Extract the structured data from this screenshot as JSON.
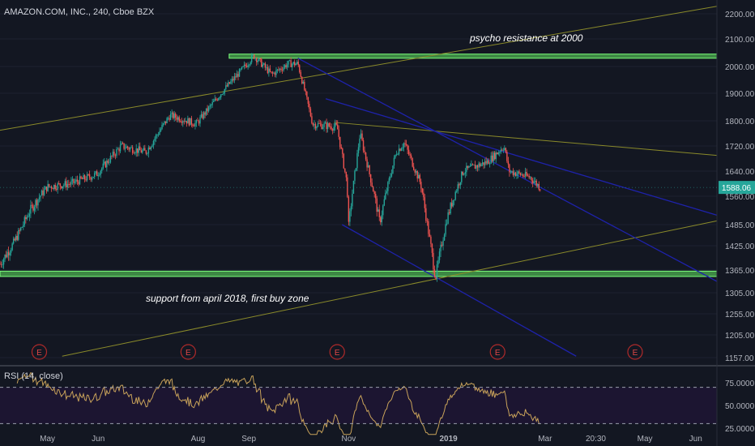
{
  "header": {
    "title": "AMAZON.COM, INC., 240, Cboe BZX"
  },
  "rsi": {
    "title": "RSI (14, close)",
    "ticks": [
      "75.0000",
      "50.0000",
      "25.0000"
    ],
    "tick_values": [
      75,
      50,
      25
    ],
    "upper_band": 70,
    "lower_band": 30
  },
  "annotations": {
    "resistance": "psycho resistance at 2000",
    "support": "support from april 2018, first buy zone"
  },
  "price_tag": {
    "label": "1588.06",
    "value": 1588.06,
    "color": "#26a69a"
  },
  "earnings_marker": "E",
  "colors": {
    "background": "#131722",
    "up": "#26a69a",
    "down": "#ef5350",
    "zone": "#4caf50",
    "channel": "#1e22aa",
    "trend": "#8a8a2a",
    "rsi": "#c8a25a"
  },
  "chart_data": {
    "type": "candlestick",
    "title": "",
    "symbol": "AMAZON.COM, INC., 240, Cboe BZX",
    "ylim": [
      1130,
      2250
    ],
    "y_ticks": [
      "2200.00",
      "2100.00",
      "2000.00",
      "1900.00",
      "1800.00",
      "1720.00",
      "1640.00",
      "1560.00",
      "1485.00",
      "1425.00",
      "1365.00",
      "1305.00",
      "1255.00",
      "1205.00",
      "1157.00"
    ],
    "y_tick_values": [
      2200,
      2100,
      2000,
      1900,
      1800,
      1720,
      1640,
      1560,
      1485,
      1425,
      1365,
      1305,
      1255,
      1205,
      1157
    ],
    "x_ticks": [
      "May",
      "Jun",
      "Aug",
      "Sep",
      "Nov",
      "2019",
      "Mar",
      "20:30",
      "May",
      "Jun"
    ],
    "earnings_dates": [
      "2018-04-26",
      "2018-07-26",
      "2018-10-25",
      "2019-01-31",
      "2019-04-25"
    ],
    "price_path": [
      [
        "2018-04-02",
        1380
      ],
      [
        "2018-04-10",
        1430
      ],
      [
        "2018-04-20",
        1520
      ],
      [
        "2018-05-01",
        1590
      ],
      [
        "2018-05-15",
        1600
      ],
      [
        "2018-05-31",
        1630
      ],
      [
        "2018-06-15",
        1720
      ],
      [
        "2018-06-30",
        1700
      ],
      [
        "2018-07-15",
        1820
      ],
      [
        "2018-07-31",
        1790
      ],
      [
        "2018-08-15",
        1900
      ],
      [
        "2018-08-31",
        2010
      ],
      [
        "2018-09-04",
        2040
      ],
      [
        "2018-09-15",
        1970
      ],
      [
        "2018-09-25",
        2010
      ],
      [
        "2018-10-01",
        2010
      ],
      [
        "2018-10-10",
        1790
      ],
      [
        "2018-10-25",
        1780
      ],
      [
        "2018-10-31",
        1600
      ],
      [
        "2018-11-01",
        1480
      ],
      [
        "2018-11-08",
        1760
      ],
      [
        "2018-11-20",
        1490
      ],
      [
        "2018-11-30",
        1700
      ],
      [
        "2018-12-05",
        1730
      ],
      [
        "2018-12-15",
        1600
      ],
      [
        "2018-12-24",
        1344
      ],
      [
        "2018-12-31",
        1500
      ],
      [
        "2019-01-10",
        1640
      ],
      [
        "2019-01-25",
        1670
      ],
      [
        "2019-02-04",
        1720
      ],
      [
        "2019-02-07",
        1640
      ],
      [
        "2019-02-20",
        1620
      ],
      [
        "2019-02-26",
        1588.06
      ]
    ],
    "zones": [
      {
        "label": "psycho resistance at 2000",
        "low": 2030,
        "high": 2045
      },
      {
        "label": "support from april 2018, first buy zone",
        "low": 1348,
        "high": 1362
      }
    ],
    "trendlines": [
      {
        "style": "olive",
        "from": [
          "2018-04-02",
          1770
        ],
        "to": [
          "2019-06-14",
          2230
        ]
      },
      {
        "style": "olive",
        "from": [
          "2018-05-10",
          1160
        ],
        "to": [
          "2019-06-14",
          1495
        ]
      },
      {
        "style": "olive",
        "from": [
          "2018-10-23",
          1795
        ],
        "to": [
          "2019-06-14",
          1690
        ]
      },
      {
        "style": "blue",
        "from": [
          "2018-10-01",
          2030
        ],
        "to": [
          "2019-06-14",
          1335
        ]
      },
      {
        "style": "blue",
        "from": [
          "2018-10-28",
          1485
        ],
        "to": [
          "2019-03-20",
          1160
        ]
      },
      {
        "style": "blue",
        "from": [
          "2018-10-18",
          1880
        ],
        "to": [
          "2019-06-14",
          1510
        ]
      }
    ]
  }
}
